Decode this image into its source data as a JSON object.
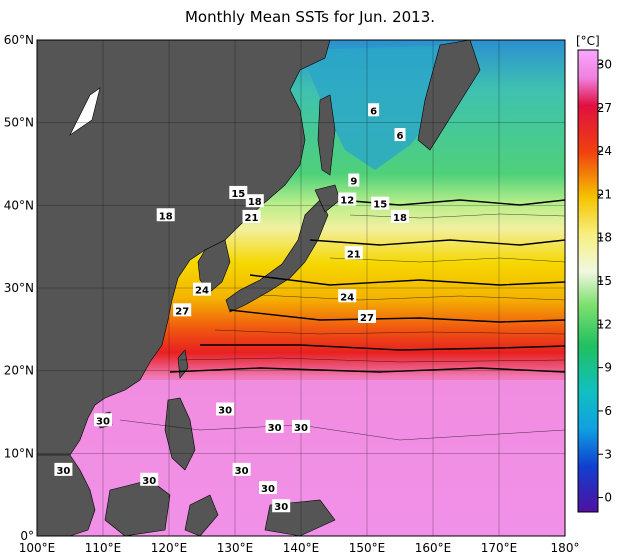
{
  "title": "Monthly Mean SSTs for Jun. 2013.",
  "unit": "[°C]",
  "lon_ticks": [
    "100°E",
    "110°E",
    "120°E",
    "130°E",
    "140°E",
    "150°E",
    "160°E",
    "170°E",
    "180°"
  ],
  "lat_ticks": [
    "60°N",
    "50°N",
    "40°N",
    "30°N",
    "20°N",
    "10°N",
    "0°"
  ],
  "colorbar": {
    "ticks": [
      "30",
      "27",
      "24",
      "21",
      "18",
      "15",
      "12",
      "9",
      "6",
      "3",
      "0"
    ],
    "range": [
      -1,
      31
    ]
  },
  "contour_labels": [
    {
      "text": "6",
      "lon": 151,
      "lat": 51.5
    },
    {
      "text": "6",
      "lon": 155,
      "lat": 48.5
    },
    {
      "text": "9",
      "lon": 148,
      "lat": 43
    },
    {
      "text": "15",
      "lon": 130.5,
      "lat": 41.5
    },
    {
      "text": "18",
      "lon": 133,
      "lat": 40.5
    },
    {
      "text": "12",
      "lon": 147,
      "lat": 40.7
    },
    {
      "text": "15",
      "lon": 152,
      "lat": 40.2
    },
    {
      "text": "18",
      "lon": 155,
      "lat": 38.6
    },
    {
      "text": "18",
      "lon": 119.5,
      "lat": 38.8
    },
    {
      "text": "21",
      "lon": 132.5,
      "lat": 38.6
    },
    {
      "text": "21",
      "lon": 148,
      "lat": 34.2
    },
    {
      "text": "24",
      "lon": 125,
      "lat": 29.8
    },
    {
      "text": "24",
      "lon": 147,
      "lat": 29
    },
    {
      "text": "27",
      "lon": 122,
      "lat": 27.3
    },
    {
      "text": "27",
      "lon": 150,
      "lat": 26.5
    },
    {
      "text": "30",
      "lon": 128.5,
      "lat": 15.3
    },
    {
      "text": "30",
      "lon": 110,
      "lat": 14
    },
    {
      "text": "30",
      "lon": 136,
      "lat": 13.2
    },
    {
      "text": "30",
      "lon": 140,
      "lat": 13.2
    },
    {
      "text": "30",
      "lon": 104,
      "lat": 8
    },
    {
      "text": "30",
      "lon": 117,
      "lat": 6.8
    },
    {
      "text": "30",
      "lon": 131,
      "lat": 8
    },
    {
      "text": "30",
      "lon": 135,
      "lat": 5.8
    },
    {
      "text": "30",
      "lon": 137,
      "lat": 3.6
    }
  ]
}
